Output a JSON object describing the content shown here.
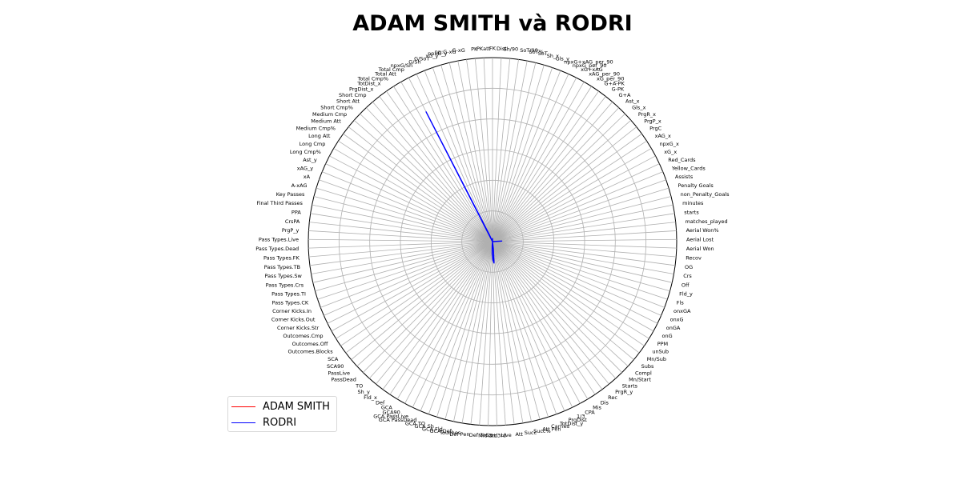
{
  "chart_data": {
    "type": "radar",
    "title": "ADAM SMITH và RODRI",
    "grid": true,
    "legend_position": "lower-left",
    "axes": [
      "FK",
      "Dist",
      "Sh/90",
      "SoT/90",
      "SoT%",
      "SoT",
      "Sh_x",
      "Gls_y",
      "npxG+xAG_per_90",
      "npxG_per_90",
      "xG+xAG",
      "xAG_per_90",
      "xG_per_90",
      "G+A-PK",
      "G-PK",
      "G+A",
      "Ast_x",
      "Gls_x",
      "PrgR_x",
      "PrgP_x",
      "PrgC",
      "xAG_x",
      "npxG_x",
      "xG_x",
      "Red_Cards",
      "Yellow_Cards",
      "Assists",
      "Penalty Goals",
      "non_Penalty_Goals",
      "minutes",
      "starts",
      "matches_played",
      "Aerial Won%",
      "Aerial Lost",
      "Aerial Won",
      "Recov",
      "OG",
      "Crs",
      "Off",
      "Fld_y",
      "Fls",
      "onxGA",
      "onxG",
      "onGA",
      "onG",
      "PPM",
      "unSub",
      "Mn/Sub",
      "Subs",
      "Compl",
      "Mn/Start",
      "Starts",
      "PrgR_y",
      "Rec",
      "Dis",
      "Mis",
      "CPA",
      "1/3",
      "PrgDist",
      "TotDist_y",
      "Carries",
      "Att Pen",
      "Succ%",
      "Succ",
      "Att",
      "Live",
      "Att 3rd",
      "Mid 3rd",
      "Def 3rd",
      "Def Pen",
      "Touches",
      "GCA Def",
      "GCA Fld",
      "GCA Sh",
      "GCA TO",
      "GCA PassDead",
      "GCA PassLive",
      "GCA90",
      "GCA",
      "Def",
      "Fld_x",
      "Sh_y",
      "TO",
      "PassDead",
      "PassLive",
      "SCA90",
      "SCA",
      "Outcomes.Blocks",
      "Outcomes.Off",
      "Outcomes.Cmp",
      "Corner Kicks.Str",
      "Corner Kicks.Out",
      "Corner Kicks.In",
      "Pass Types.CK",
      "Pass Types.TI",
      "Pass Types.Crs",
      "Pass Types.Sw",
      "Pass Types.TB",
      "Pass Types.FK",
      "Pass Types.Dead",
      "Pass Types.Live",
      "PrgP_y",
      "CrsPA",
      "PPA",
      "Final Third Passes",
      "Key Passes",
      "A-xAG",
      "xA",
      "xAG_y",
      "Ast_y",
      "Long Cmp%",
      "Long Cmp",
      "Long Att",
      "Medium Cmp%",
      "Medium Att",
      "Medium Cmp",
      "Short Cmp%",
      "Short Att",
      "Short Cmp",
      "PrgDist_x",
      "TotDist_x",
      "Total Cmp%",
      "Total Att",
      "Total Cmp",
      "npxG/Sh",
      "G/Sh",
      "G/SoT",
      "xG_y",
      "npxG_y",
      "np:G-xG",
      "G-xG",
      "PK",
      "PKatt"
    ],
    "series": [
      {
        "name": "ADAM SMITH",
        "color": "#ff0000",
        "values": [
          0,
          0,
          0,
          0,
          0,
          0,
          0,
          0,
          0,
          0,
          0,
          0,
          0,
          0,
          0,
          0,
          0,
          0,
          0,
          0,
          0,
          0,
          0,
          0,
          0,
          0,
          0,
          0,
          0,
          0,
          0,
          0,
          0,
          0,
          0,
          0,
          0,
          0,
          0,
          0,
          0,
          0,
          0,
          0,
          0,
          0,
          0,
          0,
          0,
          0,
          0,
          0,
          0,
          0,
          0,
          0,
          0,
          0,
          0,
          0,
          0,
          0,
          0,
          0,
          0,
          0,
          0,
          0,
          0,
          0,
          0,
          0,
          0,
          0,
          0,
          0,
          0,
          0,
          0,
          0,
          0,
          0,
          0,
          0,
          0,
          0,
          0,
          0,
          0,
          0,
          0,
          0,
          0,
          0,
          0,
          0,
          0,
          0,
          0,
          0,
          0,
          0,
          0,
          0,
          0,
          0,
          0,
          0,
          0,
          0,
          0,
          0,
          0,
          0,
          0,
          0,
          0,
          0,
          0,
          0,
          0,
          0,
          0,
          0,
          0,
          0,
          0,
          0,
          0,
          0,
          0,
          0,
          0,
          0,
          0,
          0
        ]
      },
      {
        "name": "RODRI",
        "color": "#0000ff",
        "values": [
          2,
          0,
          0,
          0,
          0,
          0,
          0,
          0,
          0,
          0,
          0,
          0,
          0,
          0,
          0,
          0,
          0,
          0,
          0,
          0,
          0,
          0,
          0,
          0,
          0,
          0,
          0,
          0,
          0,
          0,
          0,
          0,
          6,
          0,
          0,
          0,
          0,
          0,
          0,
          0,
          0,
          0,
          0,
          0,
          0,
          0,
          0,
          0,
          0,
          0,
          0,
          0,
          0,
          0,
          0,
          0,
          0,
          0,
          0,
          0,
          0,
          0,
          0,
          0,
          5,
          14,
          12,
          8,
          3,
          0,
          0,
          0,
          0,
          0,
          0,
          0,
          0,
          0,
          0,
          0,
          0,
          0,
          0,
          0,
          0,
          0,
          0,
          0,
          0,
          0,
          0,
          0,
          0,
          0,
          0,
          0,
          0,
          0,
          0,
          0,
          0,
          0,
          0,
          0,
          0,
          0,
          0,
          0,
          0,
          0,
          0,
          0,
          0,
          0,
          0,
          0,
          0,
          0,
          0,
          0,
          0,
          0,
          0,
          95,
          5,
          0,
          0,
          0,
          0,
          0,
          0,
          0,
          0,
          0,
          0,
          0
        ]
      }
    ],
    "rlim": [
      0,
      120
    ],
    "ring_values": [
      20,
      40,
      60,
      80,
      100,
      120
    ]
  }
}
